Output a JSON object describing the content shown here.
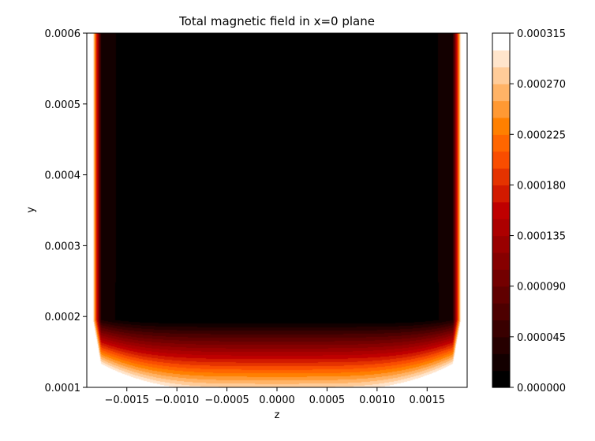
{
  "chart_data": {
    "type": "heatmap",
    "subtype": "filled-contour",
    "title": "Total magnetic field in x=0 plane",
    "xlabel": "z",
    "ylabel": "y",
    "xlim": [
      -0.0019,
      0.0019
    ],
    "ylim": [
      0.0001,
      0.0006
    ],
    "x_ticks": [
      "−0.0015",
      "−0.0010",
      "−0.0005",
      "0.0000",
      "0.0005",
      "0.0010",
      "0.0015"
    ],
    "x_tick_values": [
      -0.0015,
      -0.001,
      -0.0005,
      0,
      0.0005,
      0.001,
      0.0015
    ],
    "y_ticks": [
      "0.0001",
      "0.0002",
      "0.0003",
      "0.0004",
      "0.0005",
      "0.0006"
    ],
    "y_tick_values": [
      0.0001,
      0.0002,
      0.0003,
      0.0004,
      0.0005,
      0.0006
    ],
    "colormap": "gist_heat",
    "colorbar": {
      "min": 0.0,
      "max": 0.000315,
      "tick_labels": [
        "0.000000",
        "0.000045",
        "0.000090",
        "0.000135",
        "0.000180",
        "0.000225",
        "0.000270",
        "0.000315"
      ],
      "tick_values": [
        0,
        4.5e-05,
        9e-05,
        0.000135,
        0.00018,
        0.000225,
        0.00027,
        0.000315
      ],
      "levels": [
        0,
        1.5e-05,
        3e-05,
        4.5e-05,
        6e-05,
        7.5e-05,
        9e-05,
        0.000105,
        0.00012,
        0.000135,
        0.00015,
        0.000165,
        0.00018,
        0.000195,
        0.00021,
        0.000225,
        0.00024,
        0.000255,
        0.00027,
        0.000285,
        0.0003,
        0.000315
      ]
    },
    "field_min_location": {
      "z": 0.0,
      "y": 0.000195
    },
    "grid": false,
    "legend": "none"
  }
}
